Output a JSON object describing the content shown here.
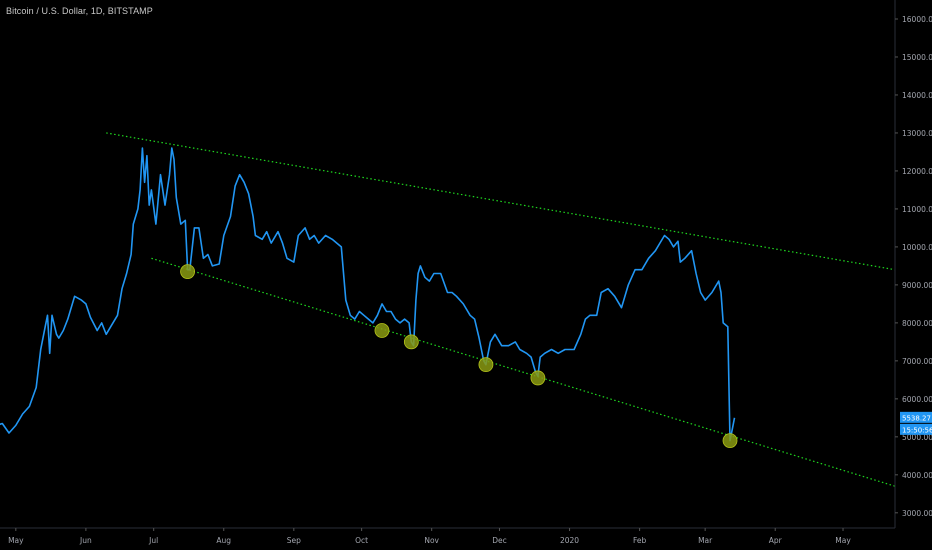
{
  "header": {
    "title": "Bitcoin / U.S. Dollar, 1D, BITSTAMP"
  },
  "colors": {
    "background": "#000000",
    "line": "#2196f3",
    "channel": "#1fd91f",
    "marker": "#8a9a12",
    "axis_text": "#a3a6af",
    "badge": "#2196f3"
  },
  "badges": {
    "price": "5538.27",
    "time": "15:50:56"
  },
  "chart_data": {
    "type": "line",
    "title": "Bitcoin / U.S. Dollar, 1D, BITSTAMP",
    "xlabel": "",
    "ylabel": "",
    "ylim": [
      2600,
      16500
    ],
    "xlim": [
      "2019-04-24",
      "2020-05-24"
    ],
    "y_ticks": [
      "3000.00",
      "4000.00",
      "5000.00",
      "6000.00",
      "7000.00",
      "8000.00",
      "9000.00",
      "10000.00",
      "11000.00",
      "12000.00",
      "13000.00",
      "14000.00",
      "15000.00",
      "16000.00"
    ],
    "x_ticks": [
      {
        "label": "May",
        "date": "2019-05-01"
      },
      {
        "label": "Jun",
        "date": "2019-06-01"
      },
      {
        "label": "Jul",
        "date": "2019-07-01"
      },
      {
        "label": "Aug",
        "date": "2019-08-01"
      },
      {
        "label": "Sep",
        "date": "2019-09-01"
      },
      {
        "label": "Oct",
        "date": "2019-10-01"
      },
      {
        "label": "Nov",
        "date": "2019-11-01"
      },
      {
        "label": "Dec",
        "date": "2019-12-01"
      },
      {
        "label": "2020",
        "date": "2020-01-01"
      },
      {
        "label": "Feb",
        "date": "2020-02-01"
      },
      {
        "label": "Mar",
        "date": "2020-03-01"
      },
      {
        "label": "Apr",
        "date": "2020-04-01"
      },
      {
        "label": "May",
        "date": "2020-05-01"
      }
    ],
    "series": [
      {
        "points": [
          [
            "2019-04-20",
            5250
          ],
          [
            "2019-04-25",
            5350
          ],
          [
            "2019-04-28",
            5100
          ],
          [
            "2019-05-01",
            5300
          ],
          [
            "2019-05-04",
            5600
          ],
          [
            "2019-05-07",
            5800
          ],
          [
            "2019-05-10",
            6300
          ],
          [
            "2019-05-12",
            7300
          ],
          [
            "2019-05-14",
            7900
          ],
          [
            "2019-05-15",
            8200
          ],
          [
            "2019-05-16",
            7200
          ],
          [
            "2019-05-17",
            8200
          ],
          [
            "2019-05-19",
            7700
          ],
          [
            "2019-05-20",
            7600
          ],
          [
            "2019-05-22",
            7800
          ],
          [
            "2019-05-24",
            8100
          ],
          [
            "2019-05-27",
            8700
          ],
          [
            "2019-05-30",
            8600
          ],
          [
            "2019-06-01",
            8500
          ],
          [
            "2019-06-03",
            8150
          ],
          [
            "2019-06-06",
            7800
          ],
          [
            "2019-06-08",
            8000
          ],
          [
            "2019-06-10",
            7700
          ],
          [
            "2019-06-12",
            7900
          ],
          [
            "2019-06-15",
            8200
          ],
          [
            "2019-06-17",
            8900
          ],
          [
            "2019-06-19",
            9300
          ],
          [
            "2019-06-21",
            9800
          ],
          [
            "2019-06-22",
            10600
          ],
          [
            "2019-06-24",
            11000
          ],
          [
            "2019-06-25",
            11500
          ],
          [
            "2019-06-26",
            12600
          ],
          [
            "2019-06-27",
            11700
          ],
          [
            "2019-06-28",
            12400
          ],
          [
            "2019-06-29",
            11100
          ],
          [
            "2019-06-30",
            11500
          ],
          [
            "2019-07-02",
            10600
          ],
          [
            "2019-07-04",
            11900
          ],
          [
            "2019-07-06",
            11100
          ],
          [
            "2019-07-08",
            11900
          ],
          [
            "2019-07-09",
            12600
          ],
          [
            "2019-07-10",
            12300
          ],
          [
            "2019-07-11",
            11300
          ],
          [
            "2019-07-13",
            10600
          ],
          [
            "2019-07-15",
            10700
          ],
          [
            "2019-07-16",
            9400
          ],
          [
            "2019-07-17",
            9400
          ],
          [
            "2019-07-19",
            10500
          ],
          [
            "2019-07-21",
            10500
          ],
          [
            "2019-07-23",
            9700
          ],
          [
            "2019-07-25",
            9800
          ],
          [
            "2019-07-27",
            9500
          ],
          [
            "2019-07-30",
            9550
          ],
          [
            "2019-08-01",
            10300
          ],
          [
            "2019-08-04",
            10800
          ],
          [
            "2019-08-06",
            11600
          ],
          [
            "2019-08-08",
            11900
          ],
          [
            "2019-08-10",
            11700
          ],
          [
            "2019-08-12",
            11400
          ],
          [
            "2019-08-14",
            10800
          ],
          [
            "2019-08-15",
            10300
          ],
          [
            "2019-08-18",
            10200
          ],
          [
            "2019-08-20",
            10400
          ],
          [
            "2019-08-22",
            10100
          ],
          [
            "2019-08-25",
            10400
          ],
          [
            "2019-08-27",
            10100
          ],
          [
            "2019-08-29",
            9700
          ],
          [
            "2019-09-01",
            9600
          ],
          [
            "2019-09-03",
            10300
          ],
          [
            "2019-09-06",
            10500
          ],
          [
            "2019-09-08",
            10200
          ],
          [
            "2019-09-10",
            10300
          ],
          [
            "2019-09-12",
            10100
          ],
          [
            "2019-09-15",
            10300
          ],
          [
            "2019-09-18",
            10200
          ],
          [
            "2019-09-20",
            10100
          ],
          [
            "2019-09-22",
            10000
          ],
          [
            "2019-09-24",
            8600
          ],
          [
            "2019-09-26",
            8200
          ],
          [
            "2019-09-28",
            8100
          ],
          [
            "2019-09-30",
            8300
          ],
          [
            "2019-10-02",
            8200
          ],
          [
            "2019-10-04",
            8100
          ],
          [
            "2019-10-06",
            8000
          ],
          [
            "2019-10-08",
            8200
          ],
          [
            "2019-10-10",
            8500
          ],
          [
            "2019-10-12",
            8300
          ],
          [
            "2019-10-14",
            8300
          ],
          [
            "2019-10-16",
            8100
          ],
          [
            "2019-10-18",
            8000
          ],
          [
            "2019-10-20",
            8100
          ],
          [
            "2019-10-22",
            8000
          ],
          [
            "2019-10-23",
            7500
          ],
          [
            "2019-10-24",
            7400
          ],
          [
            "2019-10-25",
            8600
          ],
          [
            "2019-10-26",
            9300
          ],
          [
            "2019-10-27",
            9500
          ],
          [
            "2019-10-29",
            9200
          ],
          [
            "2019-10-31",
            9100
          ],
          [
            "2019-11-02",
            9300
          ],
          [
            "2019-11-05",
            9300
          ],
          [
            "2019-11-08",
            8800
          ],
          [
            "2019-11-10",
            8800
          ],
          [
            "2019-11-12",
            8700
          ],
          [
            "2019-11-15",
            8500
          ],
          [
            "2019-11-18",
            8200
          ],
          [
            "2019-11-20",
            8100
          ],
          [
            "2019-11-22",
            7600
          ],
          [
            "2019-11-24",
            7000
          ],
          [
            "2019-11-25",
            6900
          ],
          [
            "2019-11-27",
            7500
          ],
          [
            "2019-11-29",
            7700
          ],
          [
            "2019-12-02",
            7400
          ],
          [
            "2019-12-05",
            7400
          ],
          [
            "2019-12-08",
            7500
          ],
          [
            "2019-12-10",
            7300
          ],
          [
            "2019-12-13",
            7200
          ],
          [
            "2019-12-15",
            7100
          ],
          [
            "2019-12-17",
            6700
          ],
          [
            "2019-12-18",
            6600
          ],
          [
            "2019-12-19",
            7100
          ],
          [
            "2019-12-21",
            7200
          ],
          [
            "2019-12-24",
            7300
          ],
          [
            "2019-12-27",
            7200
          ],
          [
            "2019-12-30",
            7300
          ],
          [
            "2020-01-03",
            7300
          ],
          [
            "2020-01-06",
            7700
          ],
          [
            "2020-01-08",
            8100
          ],
          [
            "2020-01-10",
            8200
          ],
          [
            "2020-01-13",
            8200
          ],
          [
            "2020-01-15",
            8800
          ],
          [
            "2020-01-18",
            8900
          ],
          [
            "2020-01-21",
            8700
          ],
          [
            "2020-01-24",
            8400
          ],
          [
            "2020-01-27",
            9000
          ],
          [
            "2020-01-30",
            9400
          ],
          [
            "2020-02-02",
            9400
          ],
          [
            "2020-02-05",
            9700
          ],
          [
            "2020-02-08",
            9900
          ],
          [
            "2020-02-10",
            10100
          ],
          [
            "2020-02-12",
            10300
          ],
          [
            "2020-02-14",
            10200
          ],
          [
            "2020-02-16",
            10000
          ],
          [
            "2020-02-18",
            10150
          ],
          [
            "2020-02-19",
            9600
          ],
          [
            "2020-02-21",
            9700
          ],
          [
            "2020-02-24",
            9900
          ],
          [
            "2020-02-26",
            9300
          ],
          [
            "2020-02-28",
            8800
          ],
          [
            "2020-03-01",
            8600
          ],
          [
            "2020-03-04",
            8800
          ],
          [
            "2020-03-07",
            9100
          ],
          [
            "2020-03-08",
            8800
          ],
          [
            "2020-03-09",
            8000
          ],
          [
            "2020-03-11",
            7900
          ],
          [
            "2020-03-12",
            4900
          ],
          [
            "2020-03-13",
            5200
          ],
          [
            "2020-03-14",
            5500
          ]
        ]
      }
    ],
    "channel": {
      "upper": [
        [
          "2019-06-10",
          13000
        ],
        [
          "2020-05-24",
          9400
        ]
      ],
      "lower": [
        [
          "2019-06-30",
          9700
        ],
        [
          "2020-05-24",
          3700
        ]
      ]
    },
    "touch_points": [
      [
        "2019-07-16",
        9350
      ],
      [
        "2019-10-10",
        7800
      ],
      [
        "2019-10-23",
        7500
      ],
      [
        "2019-11-25",
        6900
      ],
      [
        "2019-12-18",
        6550
      ],
      [
        "2020-03-12",
        4900
      ]
    ]
  }
}
